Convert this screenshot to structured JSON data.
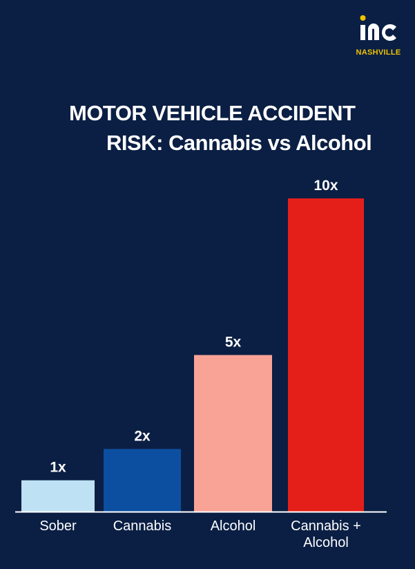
{
  "logo": {
    "text": "inc",
    "subtitle": "NASHVILLE",
    "text_color": "#ffffff",
    "accent_color": "#f2c300"
  },
  "title_lines": [
    "MOTOR VEHICLE ACCIDENT",
    "RISK: Cannabis vs Alcohol"
  ],
  "colors": {
    "background": "#0b1f45",
    "text": "#ffffff",
    "axis": "#ffffff"
  },
  "chart_data": {
    "type": "bar",
    "title": "MOTOR VEHICLE ACCIDENT RISK: Cannabis vs Alcohol",
    "categories": [
      "Sober",
      "Cannabis",
      "Alcohol",
      "Cannabis + Alcohol"
    ],
    "category_labels": [
      [
        "Sober"
      ],
      [
        "Cannabis"
      ],
      [
        "Alcohol"
      ],
      [
        "Cannabis +",
        "Alcohol"
      ]
    ],
    "values": [
      1,
      2,
      5,
      10
    ],
    "data_labels": [
      "1x",
      "2x",
      "5x",
      "10x"
    ],
    "bar_colors": [
      "#bfe1f4",
      "#0c4fa1",
      "#f8a396",
      "#e41f1a"
    ],
    "ylim": [
      0,
      10
    ],
    "xlabel": "",
    "ylabel": "",
    "grid": false,
    "legend": "none"
  }
}
